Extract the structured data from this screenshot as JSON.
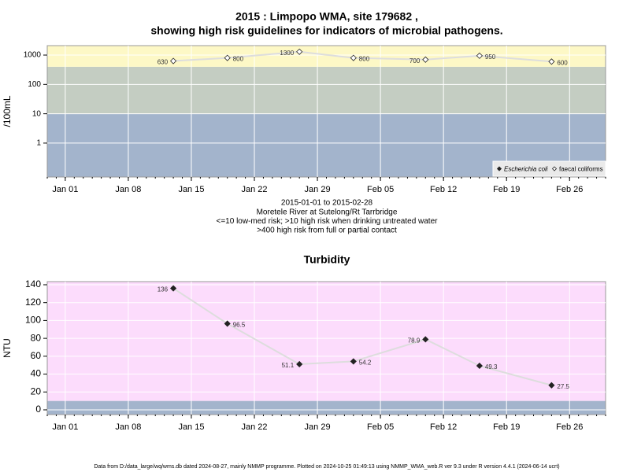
{
  "chart_data": [
    {
      "type": "line",
      "title": [
        "2015 : Limpopo WMA, site 179682 ,",
        "showing high risk guidelines for indicators of microbial pathogens."
      ],
      "ylabel": "/100mL",
      "log_y": true,
      "x": [
        "2015-01-13",
        "2015-01-19",
        "2015-01-27",
        "2015-02-02",
        "2015-02-10",
        "2015-02-16",
        "2015-02-24"
      ],
      "series": [
        {
          "name": "Escherichia coli",
          "color": "#222222",
          "marker": "filled",
          "values": [
            null,
            null,
            null,
            null,
            null,
            null,
            null
          ]
        },
        {
          "name": "faecal coliforms",
          "color": "#222222",
          "marker": "open",
          "values": [
            630,
            800,
            1300,
            800,
            700,
            950,
            600
          ]
        }
      ],
      "line_color": "#dddddd",
      "thresholds": [
        10,
        400
      ],
      "band_colors": [
        "#a3b4cc",
        "#c4cdc2",
        "#fdf8c6"
      ],
      "xlim": [
        "2014-12-30",
        "2015-03-02"
      ],
      "xticks": [
        {
          "value": "2015-01-01",
          "label": "Jan 01"
        },
        {
          "value": "2015-01-08",
          "label": "Jan 08"
        },
        {
          "value": "2015-01-15",
          "label": "Jan 15"
        },
        {
          "value": "2015-01-22",
          "label": "Jan 22"
        },
        {
          "value": "2015-01-29",
          "label": "Jan 29"
        },
        {
          "value": "2015-02-05",
          "label": "Feb 05"
        },
        {
          "value": "2015-02-12",
          "label": "Feb 12"
        },
        {
          "value": "2015-02-19",
          "label": "Feb 19"
        },
        {
          "value": "2015-02-26",
          "label": "Feb 26"
        }
      ],
      "ylim": [
        0.07,
        2100
      ],
      "yticks": [
        1,
        10,
        100,
        1000
      ],
      "grid": true,
      "legend": "bottom right",
      "caption": [
        "2015-01-01 to 2015-02-28",
        "Moretele River at Sutelong/Rt Tarrbridge",
        "<=10 low-med risk; >10 high risk when drinking untreated water",
        ">400 high risk from full or partial contact"
      ]
    },
    {
      "type": "line",
      "title": [
        "Turbidity"
      ],
      "ylabel": "NTU",
      "log_y": false,
      "x": [
        "2015-01-13",
        "2015-01-19",
        "2015-01-27",
        "2015-02-02",
        "2015-02-10",
        "2015-02-16",
        "2015-02-24"
      ],
      "series": [
        {
          "name": "Turbidity",
          "color": "#222222",
          "marker": "filled",
          "values": [
            136,
            96.5,
            51.1,
            54.2,
            78.9,
            49.3,
            27.5
          ]
        }
      ],
      "line_color": "#dddddd",
      "thresholds": [
        10
      ],
      "band_colors": [
        "#a3b4cc",
        "#fcdcfc"
      ],
      "xlim": [
        "2014-12-30",
        "2015-03-02"
      ],
      "xticks": [
        {
          "value": "2015-01-01",
          "label": "Jan 01"
        },
        {
          "value": "2015-01-08",
          "label": "Jan 08"
        },
        {
          "value": "2015-01-15",
          "label": "Jan 15"
        },
        {
          "value": "2015-01-22",
          "label": "Jan 22"
        },
        {
          "value": "2015-01-29",
          "label": "Jan 29"
        },
        {
          "value": "2015-02-05",
          "label": "Feb 05"
        },
        {
          "value": "2015-02-12",
          "label": "Feb 12"
        },
        {
          "value": "2015-02-19",
          "label": "Feb 19"
        },
        {
          "value": "2015-02-26",
          "label": "Feb 26"
        }
      ],
      "ylim": [
        -5.3,
        143.5
      ],
      "yticks": [
        0,
        20,
        40,
        60,
        80,
        100,
        120,
        140
      ],
      "grid": true
    }
  ],
  "footer": "Data from D:/data_large/wq/wms.db dated 2024-08-27, mainly NMMP programme. Plotted on 2024-10-25 01:49:13 using NMMP_WMA_web.R ver 9.3 under R version 4.4.1 (2024-06-14 ucrt)"
}
